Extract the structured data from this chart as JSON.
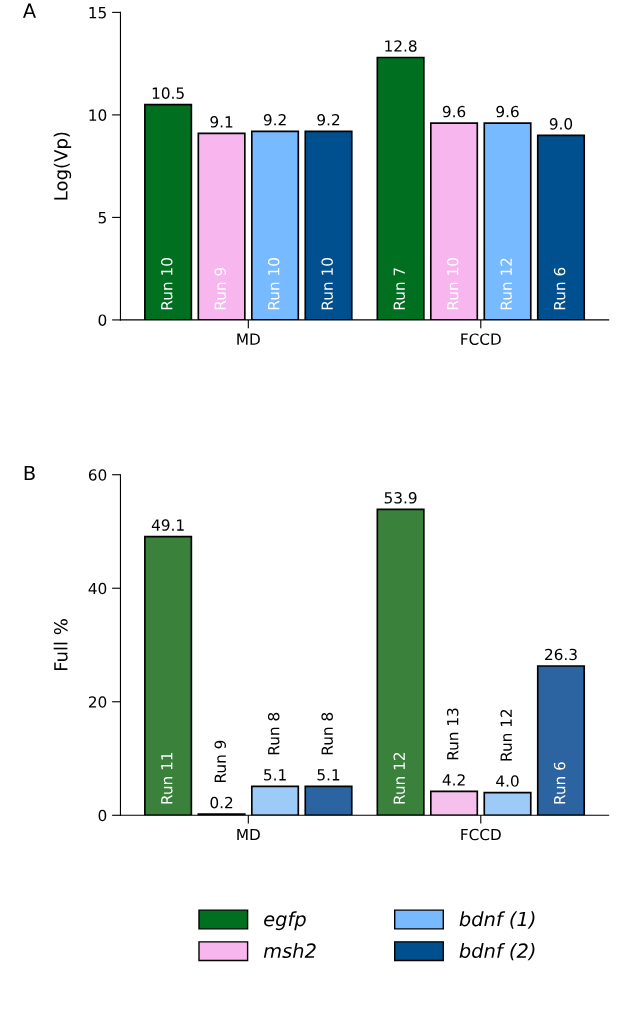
{
  "chart_data": [
    {
      "type": "bar",
      "title": "A",
      "ylabel": "Log(Vp)",
      "categories": [
        "MD",
        "FCCD"
      ],
      "ylim": [
        0,
        15
      ],
      "yticks": [
        0,
        5,
        10,
        15
      ],
      "legend": "bottom",
      "grid": false,
      "series": [
        {
          "name": "egfp",
          "color": "#007020",
          "values": [
            10.5,
            12.8
          ],
          "value_labels": [
            "10.5",
            "12.8"
          ]
        },
        {
          "name": "msh2",
          "color": "#f7b6ee",
          "values": [
            9.1,
            9.6
          ],
          "value_labels": [
            "9.1",
            "9.6"
          ]
        },
        {
          "name": "bdnf (1)",
          "color": "#78baff",
          "values": [
            9.2,
            9.6
          ],
          "value_labels": [
            "9.2",
            "9.6"
          ]
        },
        {
          "name": "bdnf (2)",
          "color": "#005090",
          "values": [
            9.2,
            9.0
          ],
          "value_labels": [
            "9.2",
            "9.0"
          ]
        }
      ],
      "annotations": [
        "Run 10",
        "Run 7",
        "Run 9",
        "Run 10",
        "Run 10",
        "Run 12",
        "Run 10",
        "Run 6"
      ]
    },
    {
      "type": "bar",
      "title": "B",
      "ylabel": "Full %",
      "categories": [
        "MD",
        "FCCD"
      ],
      "ylim": [
        0,
        60
      ],
      "yticks": [
        0,
        20,
        40,
        60
      ],
      "grid": false,
      "series": [
        {
          "color": "#3a813c",
          "values": [
            49.1,
            53.9
          ],
          "value_labels": [
            "49.1",
            "53.9"
          ]
        },
        {
          "color": "#f5c0ec",
          "values": [
            0.2,
            4.2
          ],
          "value_labels": [
            "0.2",
            "4.2"
          ]
        },
        {
          "color": "#9ccbf8",
          "values": [
            5.1,
            4.0
          ],
          "value_labels": [
            "5.1",
            "4.0"
          ]
        },
        {
          "color": "#2b64a0",
          "values": [
            5.1,
            26.3
          ],
          "value_labels": [
            "5.1",
            "26.3"
          ]
        }
      ],
      "annotations": [
        "Run 11",
        "Run 12",
        "Run 9",
        "Run 13",
        "Run 8",
        "Run 12",
        "Run 8",
        "Run 6"
      ]
    }
  ]
}
